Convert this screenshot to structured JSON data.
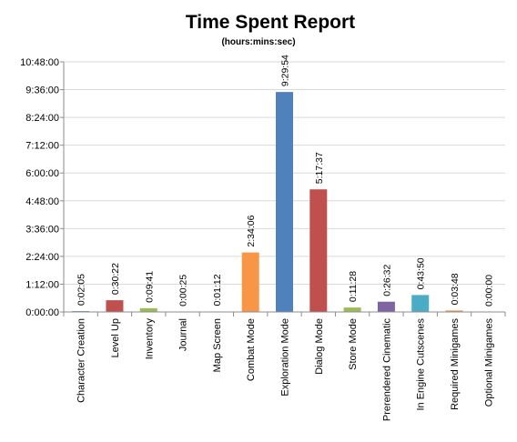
{
  "chart_data": {
    "type": "bar",
    "title": "Time Spent Report",
    "subtitle": "(hours:mins:sec)",
    "xlabel": "",
    "ylabel": "",
    "y_unit": "hours:mins:sec",
    "ylim": [
      "0:00:00",
      "10:48:00"
    ],
    "y_ticks": [
      "0:00:00",
      "1:12:00",
      "2:24:00",
      "3:36:00",
      "4:48:00",
      "6:00:00",
      "7:12:00",
      "8:24:00",
      "9:36:00",
      "10:48:00"
    ],
    "grid": "horizontal",
    "legend": "none",
    "categories": [
      "Character Creation",
      "Level Up",
      "Inventory",
      "Journal",
      "Map Screen",
      "Combat Mode",
      "Exploration Mode",
      "Dialog Mode",
      "Store Mode",
      "Prerendered Cinematic",
      "In Engine Cutscenes",
      "Required Minigames",
      "Optional Minigames"
    ],
    "values": [
      "0:02:05",
      "0:30:22",
      "0:09:41",
      "0:00:25",
      "0:01:12",
      "2:34:06",
      "9:29:54",
      "5:17:37",
      "0:11:28",
      "0:26:32",
      "0:43:50",
      "0:03:48",
      "0:00:00"
    ],
    "colors": [
      "#4f81bd",
      "#c0504d",
      "#9bbb59",
      "#8064a2",
      "#4bacc6",
      "#f79646",
      "#4f81bd",
      "#c0504d",
      "#9bbb59",
      "#8064a2",
      "#4bacc6",
      "#f79646",
      "#4f81bd"
    ]
  }
}
